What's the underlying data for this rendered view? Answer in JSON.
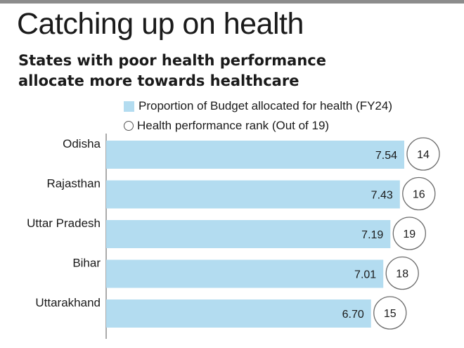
{
  "header": {
    "title": "Catching up on health",
    "subtitle_line1": "States with poor health performance",
    "subtitle_line2": "allocate more towards healthcare"
  },
  "legend": {
    "bar_label": "Proportion of Budget allocated for health (FY24)",
    "circle_label": "Health performance rank (Out of 19)"
  },
  "colors": {
    "bar": "#b3dcf0",
    "circle_stroke": "#6b6b6b",
    "axis": "#555555",
    "text": "#1a1a1a"
  },
  "chart_data": {
    "type": "bar",
    "orientation": "horizontal",
    "title": "Catching up on health",
    "subtitle": "States with poor health performance allocate more towards healthcare",
    "categories": [
      "Odisha",
      "Rajasthan",
      "Uttar Pradesh",
      "Bihar",
      "Uttarakhand"
    ],
    "series": [
      {
        "name": "Proportion of Budget allocated for health (FY24)",
        "values": [
          7.54,
          7.43,
          7.19,
          7.01,
          6.7
        ]
      },
      {
        "name": "Health performance rank (Out of 19)",
        "values": [
          14,
          16,
          19,
          18,
          15
        ]
      }
    ],
    "value_labels": [
      "7.54",
      "7.43",
      "7.19",
      "7.01",
      "6.70"
    ],
    "rank_labels": [
      "14",
      "16",
      "19",
      "18",
      "15"
    ],
    "xlim": [
      0,
      7.54
    ],
    "grid": false,
    "legend_position": "top"
  }
}
